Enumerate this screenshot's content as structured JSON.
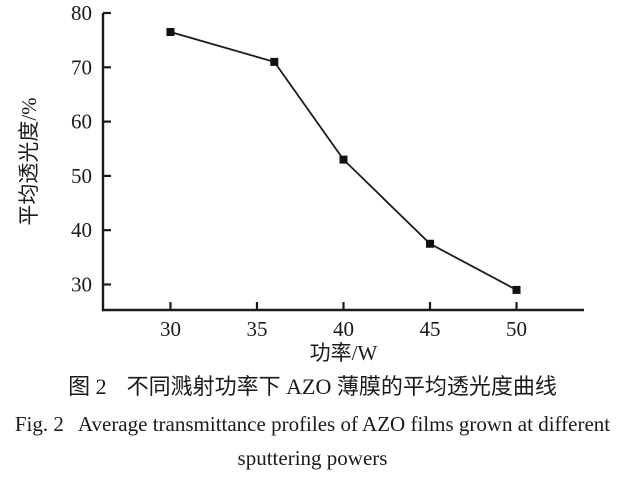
{
  "chart_data": {
    "type": "line",
    "x": [
      30,
      36,
      40,
      45,
      50
    ],
    "y": [
      76.5,
      71,
      53,
      37.5,
      29
    ],
    "series_name": "平均透光度",
    "xlabel": "功率/W",
    "ylabel": "平均透光度/%",
    "xticks": [
      30,
      35,
      40,
      45,
      50
    ],
    "yticks": [
      30,
      40,
      50,
      60,
      70,
      80
    ],
    "xlim": [
      26.1,
      53.9
    ],
    "ylim": [
      25.3,
      80
    ],
    "marker": "square",
    "marker_size": 8,
    "line_color": "#1b1b1b",
    "marker_color": "#111111",
    "grid": false,
    "legend_position": "none",
    "title": ""
  },
  "figure": {
    "caption_zh_label": "图 2",
    "caption_zh_title": "不同溅射功率下 AZO 薄膜的平均透光度曲线",
    "caption_en_label": "Fig. 2",
    "caption_en_title_line1": "Average transmittance profiles of AZO films grown at different",
    "caption_en_title_line2": "sputtering powers"
  }
}
